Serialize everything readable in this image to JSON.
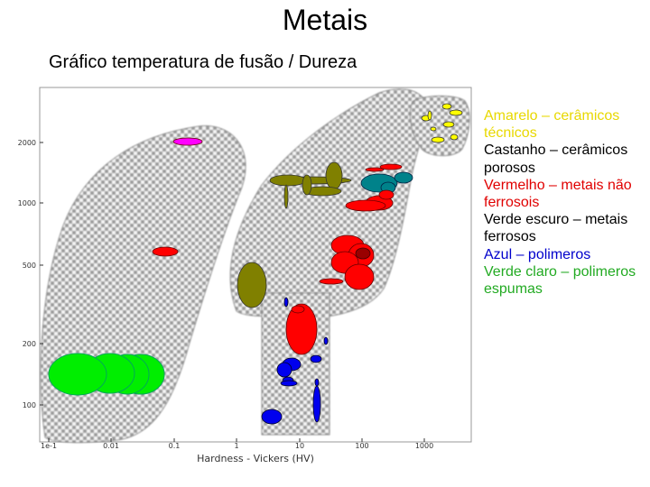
{
  "header": {
    "title": "Metais",
    "subtitle": "Gráfico temperatura de fusão / Dureza"
  },
  "legend": [
    {
      "label": "Amarelo – cerâmicos técnicos",
      "color": "#e8d800"
    },
    {
      "label": "Castanho – cerâmicos porosos",
      "color": "#000000"
    },
    {
      "label": "Vermelho – metais não ferrosois",
      "color": "#e00000"
    },
    {
      "label": "Verde escuro – metais ferrosos",
      "color": "#000000"
    },
    {
      "label": "Azul – polimeros",
      "color": "#0000cc"
    },
    {
      "label": "Verde claro – polimeros espumas",
      "color": "#22aa22"
    }
  ],
  "chart_data": {
    "type": "scatter",
    "xlabel": "Hardness - Vickers (HV)",
    "x_scale": "log",
    "y_scale": "log",
    "x_ticks": [
      "1e-1",
      "0.01",
      "0.1",
      "1",
      "10",
      "100",
      "1000"
    ],
    "y_ticks": [
      "2000",
      "1000",
      "500",
      "200",
      "100"
    ],
    "grid": false,
    "groups": [
      {
        "color": "#ffff00",
        "shape": "small ellipses",
        "region": "top-right"
      },
      {
        "color": "#808000",
        "shape": "ellipses",
        "region": "middle"
      },
      {
        "color": "#ff0000",
        "shape": "ellipses",
        "region": "center-right"
      },
      {
        "color": "#008080",
        "shape": "ellipses",
        "region": "upper-right"
      },
      {
        "color": "#0000ff",
        "shape": "small ellipses",
        "region": "lower-middle"
      },
      {
        "color": "#00ee00",
        "shape": "large ellipses",
        "region": "lower-left"
      },
      {
        "color": "#ff00ff",
        "shape": "ellipse",
        "region": "upper-left"
      }
    ]
  }
}
